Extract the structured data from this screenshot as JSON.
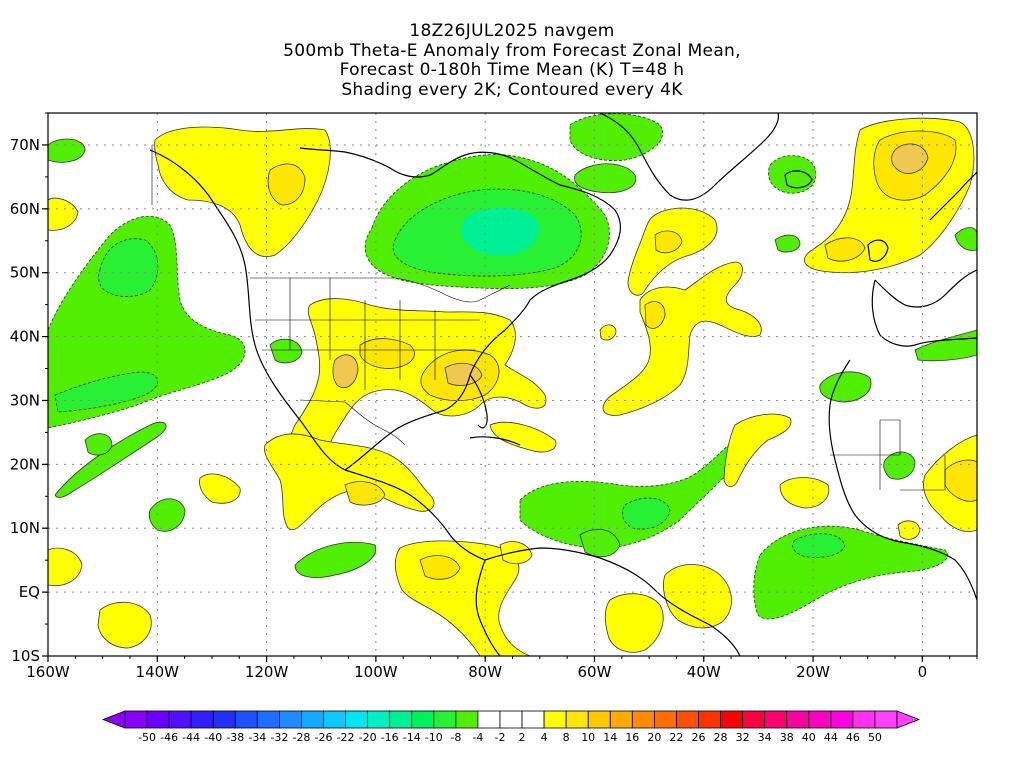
{
  "title": {
    "line1": "18Z26JUL2025 navgem",
    "line2": "500mb Theta-E Anomaly from Forecast Zonal Mean,",
    "line3": "Forecast 0-180h Time Mean (K) T=48 h",
    "line4": "Shading every 2K; Contoured every 4K"
  },
  "map": {
    "lon_range": [
      -160,
      10
    ],
    "lat_range": [
      -10,
      75
    ],
    "lat_ticks": [
      {
        "value": 70,
        "label": "70N"
      },
      {
        "value": 60,
        "label": "60N"
      },
      {
        "value": 50,
        "label": "50N"
      },
      {
        "value": 40,
        "label": "40N"
      },
      {
        "value": 30,
        "label": "30N"
      },
      {
        "value": 20,
        "label": "20N"
      },
      {
        "value": 10,
        "label": "10N"
      },
      {
        "value": 0,
        "label": "EQ"
      },
      {
        "value": -10,
        "label": "10S"
      }
    ],
    "lon_ticks": [
      {
        "value": -160,
        "label": "160W"
      },
      {
        "value": -140,
        "label": "140W"
      },
      {
        "value": -120,
        "label": "120W"
      },
      {
        "value": -100,
        "label": "100W"
      },
      {
        "value": -80,
        "label": "80W"
      },
      {
        "value": -60,
        "label": "60W"
      },
      {
        "value": -40,
        "label": "40W"
      },
      {
        "value": -20,
        "label": "20W"
      },
      {
        "value": 0,
        "label": "0"
      }
    ],
    "grid": "dotted"
  },
  "colorbar": {
    "labels": [
      "-50",
      "-46",
      "-44",
      "-40",
      "-38",
      "-34",
      "-32",
      "-28",
      "-26",
      "-22",
      "-20",
      "-16",
      "-14",
      "-10",
      "-8",
      "-4",
      "-2",
      "2",
      "4",
      "8",
      "10",
      "14",
      "16",
      "20",
      "22",
      "26",
      "28",
      "32",
      "34",
      "38",
      "40",
      "44",
      "46",
      "50"
    ],
    "colors": [
      "#8a00ff",
      "#6a00ff",
      "#5010ff",
      "#3020ff",
      "#1e32f0",
      "#1e50ff",
      "#1e6eff",
      "#1e8cff",
      "#14aaff",
      "#10c8ff",
      "#00e6f0",
      "#00f0c0",
      "#00f096",
      "#00f064",
      "#28f032",
      "#50ee00",
      "#ffffff",
      "#ffffff",
      "#ffffff",
      "#ffff00",
      "#ffe600",
      "#ffc800",
      "#ffaa00",
      "#ff8c00",
      "#ff6e00",
      "#ff5000",
      "#ff3200",
      "#ff0000",
      "#ff0040",
      "#ff0070",
      "#ff00a0",
      "#ff00c0",
      "#ff00e0",
      "#ff30f0",
      "#ff40ff"
    ]
  },
  "colors": {
    "anomaly_warm_1": "#ffff00",
    "anomaly_warm_2": "#ffe600",
    "anomaly_warm_3": "#f0c850",
    "anomaly_cold_1": "#50ee00",
    "anomaly_cold_2": "#28f032",
    "anomaly_cold_3": "#00f096"
  }
}
